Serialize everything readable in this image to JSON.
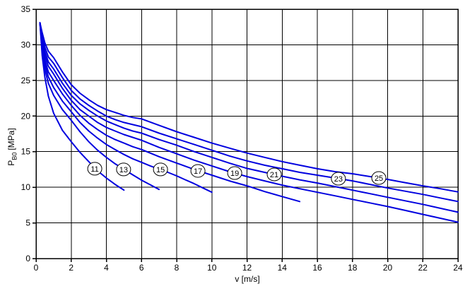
{
  "chart_data": {
    "type": "line",
    "title": "",
    "xlabel": "v [m/s]",
    "ylabel": "PB0 [MPa]",
    "ylabel_parts": {
      "base": "P",
      "sub": "B0",
      "unit": "[MPa]"
    },
    "xlim": [
      0,
      24
    ],
    "ylim": [
      0,
      35
    ],
    "x_ticks": [
      0,
      2,
      4,
      6,
      8,
      10,
      12,
      14,
      16,
      18,
      20,
      22,
      24
    ],
    "y_ticks": [
      0,
      5,
      10,
      15,
      20,
      25,
      30,
      35
    ],
    "grid": true,
    "legend_position": "circled labels placed on each curve",
    "line_color": "#0000DF",
    "grid_color": "#000000",
    "series": [
      {
        "name": "11",
        "label_pos": {
          "x": 3.34,
          "y": 12.6
        },
        "points": [
          [
            0.22,
            33.1
          ],
          [
            0.35,
            28.5
          ],
          [
            0.5,
            25.5
          ],
          [
            0.7,
            22.8
          ],
          [
            1,
            20.4
          ],
          [
            1.5,
            18.0
          ],
          [
            2,
            16.4
          ],
          [
            2.5,
            14.9
          ],
          [
            3,
            13.6
          ],
          [
            3.5,
            12.3
          ],
          [
            4,
            11.3
          ],
          [
            4.5,
            10.4
          ],
          [
            5,
            9.6
          ]
        ]
      },
      {
        "name": "13",
        "label_pos": {
          "x": 4.98,
          "y": 12.5
        },
        "points": [
          [
            0.22,
            33.1
          ],
          [
            0.35,
            29.3
          ],
          [
            0.5,
            26.6
          ],
          [
            0.7,
            24.6
          ],
          [
            1,
            22.9
          ],
          [
            1.5,
            20.9
          ],
          [
            2,
            19.4
          ],
          [
            2.5,
            17.8
          ],
          [
            3,
            16.4
          ],
          [
            3.5,
            15.2
          ],
          [
            4,
            14.2
          ],
          [
            4.5,
            13.3
          ],
          [
            5,
            12.5
          ],
          [
            5.5,
            11.75
          ],
          [
            6,
            11.0
          ],
          [
            6.5,
            10.35
          ],
          [
            7,
            9.7
          ]
        ]
      },
      {
        "name": "15",
        "label_pos": {
          "x": 7.08,
          "y": 12.5
        },
        "points": [
          [
            0.22,
            33.1
          ],
          [
            0.35,
            30.0
          ],
          [
            0.5,
            27.3
          ],
          [
            0.7,
            25.5
          ],
          [
            1,
            24.0
          ],
          [
            1.5,
            22.1
          ],
          [
            2,
            20.6
          ],
          [
            2.5,
            19.1
          ],
          [
            3,
            17.9
          ],
          [
            3.5,
            16.9
          ],
          [
            4,
            16.0
          ],
          [
            4.5,
            15.3
          ],
          [
            5,
            14.6
          ],
          [
            5.5,
            14.0
          ],
          [
            6,
            13.5
          ],
          [
            6.5,
            13.0
          ],
          [
            7,
            12.55
          ],
          [
            7.5,
            12.1
          ],
          [
            8,
            11.6
          ],
          [
            8.5,
            11.05
          ],
          [
            9,
            10.5
          ],
          [
            9.5,
            9.9
          ],
          [
            10,
            9.3
          ]
        ]
      },
      {
        "name": "17",
        "label_pos": {
          "x": 9.21,
          "y": 12.3
        },
        "points": [
          [
            0.22,
            33.1
          ],
          [
            0.35,
            30.4
          ],
          [
            0.5,
            27.9
          ],
          [
            0.7,
            26.2
          ],
          [
            1,
            25.0
          ],
          [
            1.5,
            23.1
          ],
          [
            2,
            21.5
          ],
          [
            2.5,
            20.1
          ],
          [
            3,
            19.0
          ],
          [
            3.5,
            18.1
          ],
          [
            4,
            17.3
          ],
          [
            4.5,
            16.7
          ],
          [
            5,
            16.2
          ],
          [
            5.5,
            15.7
          ],
          [
            6,
            15.3
          ],
          [
            7,
            14.3
          ],
          [
            8,
            13.4
          ],
          [
            9,
            12.5
          ],
          [
            10,
            11.7
          ],
          [
            11,
            10.9
          ],
          [
            12,
            10.2
          ],
          [
            13,
            9.4
          ],
          [
            14,
            8.7
          ],
          [
            15,
            8.0
          ]
        ]
      },
      {
        "name": "19",
        "label_pos": {
          "x": 11.3,
          "y": 12.0
        },
        "points": [
          [
            0.22,
            33.1
          ],
          [
            0.35,
            30.8
          ],
          [
            0.5,
            28.5
          ],
          [
            0.7,
            27.0
          ],
          [
            1,
            25.9
          ],
          [
            1.5,
            23.9
          ],
          [
            2,
            22.2
          ],
          [
            2.5,
            20.9
          ],
          [
            3,
            20.0
          ],
          [
            3.5,
            19.1
          ],
          [
            4,
            18.4
          ],
          [
            4.5,
            17.9
          ],
          [
            5,
            17.4
          ],
          [
            5.5,
            17.0
          ],
          [
            6,
            16.6
          ],
          [
            7,
            15.6
          ],
          [
            8,
            14.7
          ],
          [
            9,
            13.8
          ],
          [
            10,
            13.0
          ],
          [
            11,
            12.2
          ],
          [
            12,
            11.5
          ],
          [
            13,
            10.9
          ],
          [
            14,
            10.3
          ],
          [
            15,
            9.8
          ],
          [
            16,
            9.3
          ],
          [
            17,
            8.8
          ],
          [
            18,
            8.3
          ],
          [
            19,
            7.8
          ],
          [
            20,
            7.3
          ],
          [
            21,
            6.75
          ],
          [
            22,
            6.2
          ],
          [
            23,
            5.65
          ],
          [
            24,
            5.1
          ]
        ]
      },
      {
        "name": "21",
        "label_pos": {
          "x": 13.55,
          "y": 11.8
        },
        "points": [
          [
            0.22,
            33.1
          ],
          [
            0.35,
            31.1
          ],
          [
            0.5,
            29.1
          ],
          [
            0.7,
            27.6
          ],
          [
            1,
            26.6
          ],
          [
            1.5,
            24.6
          ],
          [
            2,
            22.9
          ],
          [
            2.5,
            21.7
          ],
          [
            3,
            20.8
          ],
          [
            3.5,
            20.0
          ],
          [
            4,
            19.3
          ],
          [
            4.5,
            18.8
          ],
          [
            5,
            18.3
          ],
          [
            5.5,
            17.9
          ],
          [
            6,
            17.6
          ],
          [
            7,
            16.7
          ],
          [
            8,
            15.9
          ],
          [
            9,
            15.0
          ],
          [
            10,
            14.2
          ],
          [
            11,
            13.4
          ],
          [
            12,
            12.65
          ],
          [
            13,
            12.1
          ],
          [
            14,
            11.55
          ],
          [
            15,
            11.05
          ],
          [
            16,
            10.6
          ],
          [
            17,
            10.1
          ],
          [
            18,
            9.6
          ],
          [
            19,
            9.1
          ],
          [
            20,
            8.6
          ],
          [
            21,
            8.1
          ],
          [
            22,
            7.6
          ],
          [
            23,
            7.05
          ],
          [
            24,
            6.5
          ]
        ]
      },
      {
        "name": "23",
        "label_pos": {
          "x": 17.2,
          "y": 11.2
        },
        "points": [
          [
            0.22,
            33.1
          ],
          [
            0.35,
            31.4
          ],
          [
            0.5,
            29.7
          ],
          [
            0.7,
            28.3
          ],
          [
            1,
            27.4
          ],
          [
            1.5,
            25.4
          ],
          [
            2,
            23.6
          ],
          [
            2.5,
            22.4
          ],
          [
            3,
            21.5
          ],
          [
            3.5,
            20.7
          ],
          [
            4,
            20.0
          ],
          [
            4.5,
            19.5
          ],
          [
            5,
            19.1
          ],
          [
            5.5,
            18.8
          ],
          [
            6,
            18.5
          ],
          [
            7,
            17.6
          ],
          [
            8,
            16.8
          ],
          [
            9,
            16.0
          ],
          [
            10,
            15.2
          ],
          [
            11,
            14.4
          ],
          [
            12,
            13.7
          ],
          [
            13,
            13.1
          ],
          [
            14,
            12.6
          ],
          [
            15,
            12.1
          ],
          [
            16,
            11.7
          ],
          [
            17,
            11.3
          ],
          [
            18,
            10.9
          ],
          [
            19,
            10.4
          ],
          [
            20,
            9.9
          ],
          [
            21,
            9.45
          ],
          [
            22,
            9.0
          ],
          [
            23,
            8.5
          ],
          [
            24,
            8.0
          ]
        ]
      },
      {
        "name": "25",
        "label_pos": {
          "x": 19.5,
          "y": 11.3
        },
        "points": [
          [
            0.22,
            33.1
          ],
          [
            0.35,
            31.7
          ],
          [
            0.5,
            30.3
          ],
          [
            0.7,
            29.1
          ],
          [
            1,
            28.2
          ],
          [
            1.5,
            26.2
          ],
          [
            2,
            24.4
          ],
          [
            2.5,
            23.2
          ],
          [
            3,
            22.3
          ],
          [
            3.5,
            21.5
          ],
          [
            4,
            20.9
          ],
          [
            4.5,
            20.5
          ],
          [
            5,
            20.1
          ],
          [
            5.5,
            19.8
          ],
          [
            6,
            19.6
          ],
          [
            7,
            18.7
          ],
          [
            8,
            17.8
          ],
          [
            9,
            17.0
          ],
          [
            10,
            16.2
          ],
          [
            11,
            15.5
          ],
          [
            12,
            14.8
          ],
          [
            13,
            14.2
          ],
          [
            14,
            13.6
          ],
          [
            15,
            13.1
          ],
          [
            16,
            12.6
          ],
          [
            17,
            12.2
          ],
          [
            18,
            11.9
          ],
          [
            19,
            11.5
          ],
          [
            20,
            11.1
          ],
          [
            21,
            10.65
          ],
          [
            22,
            10.2
          ],
          [
            23,
            9.8
          ],
          [
            24,
            9.35
          ]
        ]
      }
    ]
  }
}
